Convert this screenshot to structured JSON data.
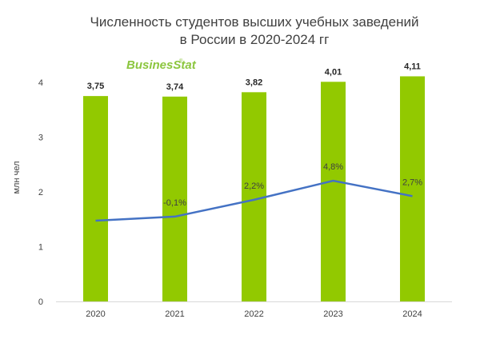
{
  "title_line1": "Численность студентов высших учебных заведений",
  "title_line2": "в России в 2020-2024 гг",
  "logo": "BusinesStat",
  "chart_data": {
    "type": "bar",
    "title": "Численность студентов высших учебных заведений в России в 2020-2024 гг",
    "categories": [
      "2020",
      "2021",
      "2022",
      "2023",
      "2024"
    ],
    "ylabel": "млн чел",
    "ylim": [
      0,
      4
    ],
    "yticks": [
      "0",
      "1",
      "2",
      "3",
      "4"
    ],
    "grid": false,
    "series": [
      {
        "kind": "bar",
        "color": "#92c900",
        "values": [
          3.75,
          3.74,
          3.82,
          4.01,
          4.11
        ],
        "labels": [
          "3,75",
          "3,74",
          "3,82",
          "4,01",
          "4,11"
        ]
      },
      {
        "kind": "line",
        "color": "#4472c4",
        "secondary_axis": true,
        "values": [
          null,
          -0.1,
          2.2,
          4.8,
          2.7
        ],
        "labels": [
          "",
          "-0,1%",
          "2,2%",
          "4,8%",
          "2,7%"
        ]
      }
    ]
  }
}
